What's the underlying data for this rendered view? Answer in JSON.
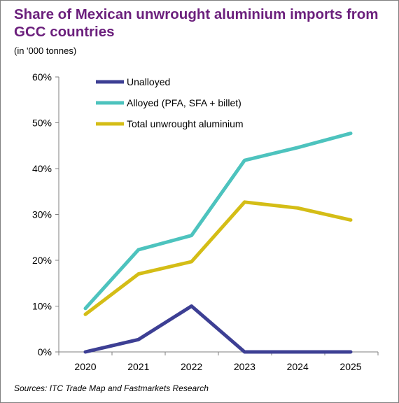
{
  "chart_data": {
    "type": "line",
    "title": "Share of Mexican unwrought aluminium imports from GCC countries",
    "subtitle": "(in '000 tonnes)",
    "source": "Sources: ITC Trade Map and Fastmarkets Research",
    "x": [
      "2020",
      "2021",
      "2022",
      "2023",
      "2024",
      "2025"
    ],
    "yticks": [
      "0%",
      "10%",
      "20%",
      "30%",
      "40%",
      "50%",
      "60%"
    ],
    "ylim": [
      0,
      60
    ],
    "grid": false,
    "legend_position": "top-left",
    "series": [
      {
        "name": "Unalloyed",
        "color": "#3d3f94",
        "values": [
          0,
          2.7,
          10,
          0,
          0,
          0
        ]
      },
      {
        "name": "Alloyed (PFA, SFA + billet)",
        "color": "#4dc3be",
        "values": [
          9.5,
          22.3,
          25.4,
          41.8,
          44.6,
          47.7
        ]
      },
      {
        "name": "Total unwrought aluminium",
        "color": "#d4bd16",
        "values": [
          8.2,
          17,
          19.7,
          32.7,
          31.4,
          28.8
        ]
      }
    ]
  }
}
